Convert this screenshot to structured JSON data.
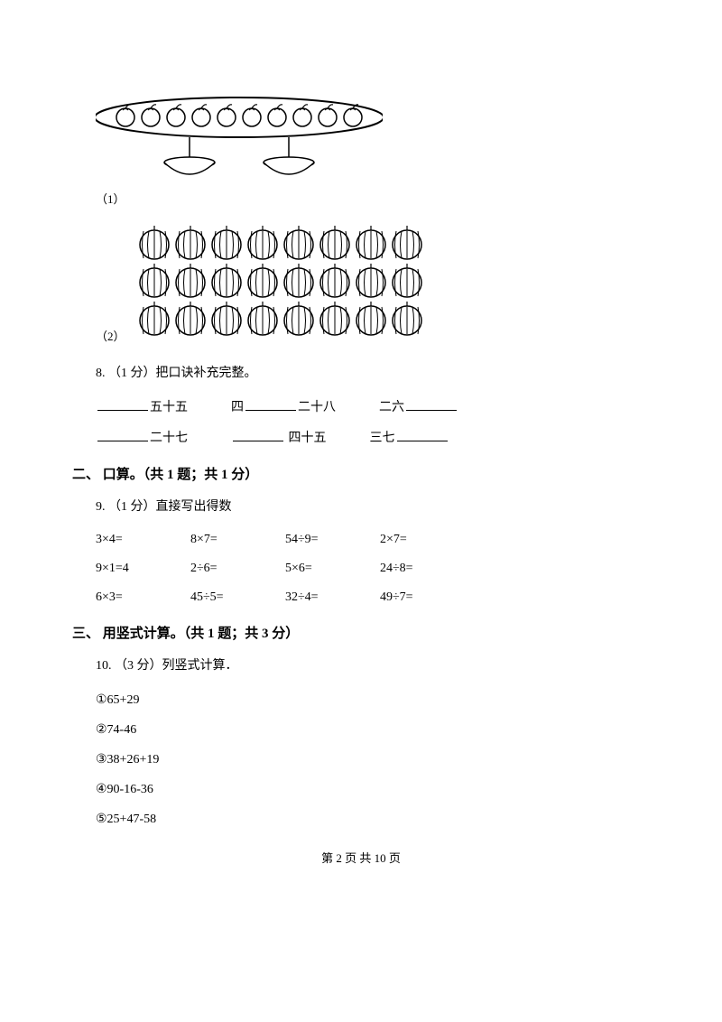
{
  "q7": {
    "sub1_label": "（1）",
    "sub2_label": "（2）",
    "apple_figure": {
      "apple_count": 10,
      "apple_radius": 10,
      "apple_spacing": 28,
      "stroke": "#000000",
      "fill": "#ffffff",
      "platter_stroke_width": 2,
      "apple_stroke_width": 1.5,
      "bowl_count": 2,
      "bowl_width": 56,
      "bowl_height": 18
    },
    "watermelon_figure": {
      "rows": 3,
      "cols": 8,
      "radius": 16,
      "hspacing": 40,
      "vspacing": 42,
      "stroke": "#000000",
      "fill": "#ffffff",
      "stroke_width": 1.5
    }
  },
  "q8": {
    "prefix": "8. （1 分）把口诀补充完整。",
    "rows": [
      [
        {
          "before": "",
          "after": "五十五"
        },
        {
          "before": "四",
          "after": "二十八"
        },
        {
          "before": "二六",
          "after": ""
        }
      ],
      [
        {
          "before": "",
          "after": "二十七"
        },
        {
          "before": "",
          "after": " 四十五"
        },
        {
          "before": "三七",
          "after": ""
        }
      ]
    ]
  },
  "section2": {
    "header": "二、 口算。（共 1 题；共 1 分）"
  },
  "q9": {
    "prefix": "9. （1 分）直接写出得数",
    "rows": [
      [
        "3×4=",
        "8×7=",
        "54÷9=",
        "2×7="
      ],
      [
        "9×1=4",
        "2÷6=",
        "5×6=",
        "24÷8="
      ],
      [
        "6×3=",
        "45÷5=",
        "32÷4=",
        "49÷7="
      ]
    ]
  },
  "section3": {
    "header": "三、 用竖式计算。（共 1 题；共 3 分）"
  },
  "q10": {
    "prefix": "10. （3 分）列竖式计算．",
    "items": [
      "①65+29",
      "②74-46",
      "③38+26+19",
      "④90-16-36",
      "⑤25+47-58"
    ]
  },
  "footer": {
    "text": "第 2 页 共 10 页"
  }
}
